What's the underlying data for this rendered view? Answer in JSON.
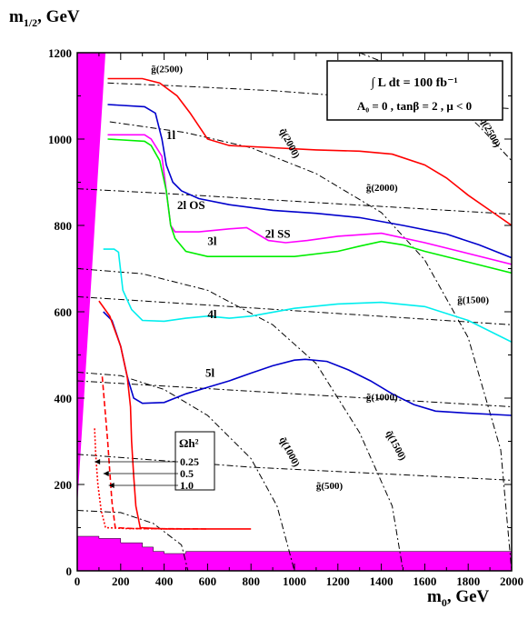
{
  "chart_data": {
    "type": "line",
    "xlabel": {
      "symbol": "m",
      "sub": "0",
      "unit": ", GeV"
    },
    "ylabel": {
      "symbol": "m",
      "sub": "1/2",
      "unit": ", GeV"
    },
    "xlim": [
      0,
      2000
    ],
    "ylim": [
      0,
      1200
    ],
    "xticks": [
      "0",
      "200",
      "400",
      "600",
      "800",
      "1000",
      "1200",
      "1400",
      "1600",
      "1800",
      "2000"
    ],
    "yticks": [
      "0",
      "200",
      "400",
      "600",
      "800",
      "1000",
      "1200"
    ],
    "info_box": {
      "line1": "∫ L dt = 100 fb⁻¹",
      "line2": "A₀ = 0 ,  tanβ = 2 ,  μ < 0"
    },
    "omega_legend": {
      "title": "Ωh²",
      "items": [
        "0.25",
        "0.5",
        "1.0"
      ]
    },
    "series": [
      {
        "name": "1l",
        "color": "#ff0000",
        "label_at": [
          410,
          1000
        ],
        "points": [
          [
            140,
            1140
          ],
          [
            300,
            1140
          ],
          [
            380,
            1130
          ],
          [
            460,
            1100
          ],
          [
            520,
            1060
          ],
          [
            600,
            1000
          ],
          [
            700,
            985
          ],
          [
            900,
            980
          ],
          [
            1100,
            975
          ],
          [
            1300,
            972
          ],
          [
            1450,
            965
          ],
          [
            1600,
            940
          ],
          [
            1700,
            910
          ],
          [
            1800,
            870
          ],
          [
            1900,
            835
          ],
          [
            2000,
            800
          ]
        ]
      },
      {
        "name": "2l OS",
        "color": "#0000cc",
        "label_at": [
          460,
          838
        ],
        "points": [
          [
            140,
            1080
          ],
          [
            310,
            1075
          ],
          [
            360,
            1060
          ],
          [
            390,
            1000
          ],
          [
            410,
            940
          ],
          [
            440,
            900
          ],
          [
            480,
            880
          ],
          [
            560,
            862
          ],
          [
            700,
            848
          ],
          [
            900,
            835
          ],
          [
            1100,
            828
          ],
          [
            1300,
            818
          ],
          [
            1500,
            800
          ],
          [
            1700,
            780
          ],
          [
            1850,
            755
          ],
          [
            2000,
            725
          ]
        ]
      },
      {
        "name": "2l SS",
        "color": "#ff00ff",
        "label_at": [
          865,
          772
        ],
        "points": [
          [
            140,
            1010
          ],
          [
            310,
            1010
          ],
          [
            340,
            1000
          ],
          [
            390,
            960
          ],
          [
            410,
            880
          ],
          [
            430,
            800
          ],
          [
            450,
            785
          ],
          [
            560,
            785
          ],
          [
            700,
            792
          ],
          [
            780,
            795
          ],
          [
            830,
            780
          ],
          [
            880,
            765
          ],
          [
            960,
            760
          ],
          [
            1060,
            765
          ],
          [
            1200,
            775
          ],
          [
            1400,
            782
          ],
          [
            1600,
            760
          ],
          [
            1800,
            735
          ],
          [
            2000,
            710
          ]
        ]
      },
      {
        "name": "3l",
        "color": "#00ee00",
        "label_at": [
          600,
          755
        ],
        "points": [
          [
            140,
            1000
          ],
          [
            310,
            995
          ],
          [
            340,
            985
          ],
          [
            380,
            950
          ],
          [
            410,
            880
          ],
          [
            430,
            800
          ],
          [
            450,
            770
          ],
          [
            500,
            740
          ],
          [
            600,
            728
          ],
          [
            800,
            728
          ],
          [
            1000,
            728
          ],
          [
            1200,
            740
          ],
          [
            1300,
            752
          ],
          [
            1400,
            763
          ],
          [
            1500,
            755
          ],
          [
            1600,
            740
          ],
          [
            1800,
            715
          ],
          [
            2000,
            690
          ]
        ]
      },
      {
        "name": "4l",
        "color": "#00eeee",
        "label_at": [
          600,
          585
        ],
        "points": [
          [
            120,
            745
          ],
          [
            150,
            745
          ],
          [
            170,
            745
          ],
          [
            190,
            738
          ],
          [
            210,
            650
          ],
          [
            250,
            605
          ],
          [
            300,
            580
          ],
          [
            400,
            578
          ],
          [
            500,
            585
          ],
          [
            600,
            590
          ],
          [
            700,
            585
          ],
          [
            800,
            590
          ],
          [
            1000,
            608
          ],
          [
            1200,
            618
          ],
          [
            1400,
            622
          ],
          [
            1600,
            612
          ],
          [
            1800,
            580
          ],
          [
            2000,
            530
          ]
        ]
      },
      {
        "name": "5l",
        "color": "#0000cc",
        "label_at": [
          590,
          450
        ],
        "points": [
          [
            120,
            600
          ],
          [
            160,
            580
          ],
          [
            200,
            520
          ],
          [
            230,
            450
          ],
          [
            260,
            400
          ],
          [
            300,
            388
          ],
          [
            400,
            390
          ],
          [
            500,
            410
          ],
          [
            600,
            425
          ],
          [
            700,
            440
          ],
          [
            800,
            458
          ],
          [
            900,
            475
          ],
          [
            1000,
            488
          ],
          [
            1050,
            490
          ],
          [
            1150,
            485
          ],
          [
            1250,
            465
          ],
          [
            1350,
            440
          ],
          [
            1450,
            410
          ],
          [
            1550,
            385
          ],
          [
            1650,
            370
          ],
          [
            1800,
            365
          ],
          [
            2000,
            360
          ]
        ]
      }
    ],
    "relic_curves": [
      {
        "omega": "0.25",
        "style": "dotted",
        "color": "#ff0000",
        "points": [
          [
            80,
            330
          ],
          [
            85,
            270
          ],
          [
            95,
            200
          ],
          [
            110,
            140
          ],
          [
            130,
            100
          ],
          [
            230,
            98
          ],
          [
            500,
            97
          ]
        ]
      },
      {
        "omega": "0.5",
        "style": "dashed",
        "color": "#ff0000",
        "points": [
          [
            115,
            450
          ],
          [
            125,
            390
          ],
          [
            140,
            300
          ],
          [
            150,
            230
          ],
          [
            160,
            160
          ],
          [
            175,
            100
          ],
          [
            260,
            98
          ],
          [
            600,
            97
          ]
        ]
      },
      {
        "omega": "1.0",
        "style": "solid",
        "color": "#ff0000",
        "points": [
          [
            100,
            625
          ],
          [
            150,
            590
          ],
          [
            200,
            520
          ],
          [
            230,
            450
          ],
          [
            245,
            380
          ],
          [
            250,
            300
          ],
          [
            260,
            220
          ],
          [
            270,
            150
          ],
          [
            290,
            100
          ],
          [
            400,
            97
          ],
          [
            800,
            97
          ]
        ]
      }
    ],
    "gluino_contours": [
      {
        "label": "g̃(500)",
        "label_at": [
          1100,
          190
        ],
        "points": [
          [
            0,
            270
          ],
          [
            400,
            255
          ],
          [
            800,
            240
          ],
          [
            1200,
            230
          ],
          [
            1600,
            220
          ],
          [
            2000,
            210
          ]
        ]
      },
      {
        "label": "g̃(1000)",
        "label_at": [
          1330,
          395
        ],
        "points": [
          [
            0,
            440
          ],
          [
            400,
            428
          ],
          [
            800,
            416
          ],
          [
            1200,
            404
          ],
          [
            1600,
            392
          ],
          [
            2000,
            380
          ]
        ]
      },
      {
        "label": "g̃(1500)",
        "label_at": [
          1750,
          620
        ],
        "points": [
          [
            0,
            635
          ],
          [
            400,
            622
          ],
          [
            800,
            609
          ],
          [
            1200,
            596
          ],
          [
            1600,
            583
          ],
          [
            2000,
            570
          ]
        ]
      },
      {
        "label": "g̃(2000)",
        "label_at": [
          1330,
          880
        ],
        "points": [
          [
            0,
            885
          ],
          [
            400,
            874
          ],
          [
            800,
            862
          ],
          [
            1200,
            850
          ],
          [
            1600,
            838
          ],
          [
            2000,
            826
          ]
        ]
      },
      {
        "label": "g̃(2500)",
        "label_at": [
          340,
          1155
        ],
        "points": [
          [
            140,
            1130
          ],
          [
            500,
            1122
          ],
          [
            900,
            1112
          ],
          [
            1300,
            1097
          ],
          [
            1700,
            1082
          ],
          [
            2000,
            1070
          ]
        ]
      }
    ],
    "squark_contours": [
      {
        "label": "q̃(1000)",
        "label_at": [
          930,
          305
        ],
        "points": [
          [
            0,
            460
          ],
          [
            200,
            452
          ],
          [
            400,
            420
          ],
          [
            600,
            360
          ],
          [
            800,
            260
          ],
          [
            920,
            150
          ],
          [
            1000,
            0
          ]
        ]
      },
      {
        "label": "q̃(1500)",
        "label_at": [
          1420,
          320
        ],
        "points": [
          [
            0,
            700
          ],
          [
            300,
            688
          ],
          [
            600,
            650
          ],
          [
            900,
            570
          ],
          [
            1100,
            480
          ],
          [
            1300,
            320
          ],
          [
            1450,
            150
          ],
          [
            1500,
            0
          ]
        ]
      },
      {
        "label": "q̃(2000)",
        "label_at": [
          930,
          1020
        ],
        "points": [
          [
            150,
            1040
          ],
          [
            500,
            1015
          ],
          [
            800,
            980
          ],
          [
            1100,
            920
          ],
          [
            1400,
            830
          ],
          [
            1600,
            720
          ],
          [
            1800,
            540
          ],
          [
            1950,
            280
          ],
          [
            2000,
            0
          ]
        ]
      },
      {
        "label": "q̃(2500)",
        "label_at": [
          1855,
          1045
        ],
        "points": [
          [
            1300,
            1200
          ],
          [
            1500,
            1160
          ],
          [
            1700,
            1100
          ],
          [
            1850,
            1030
          ],
          [
            2000,
            950
          ]
        ]
      }
    ],
    "small_contour": {
      "points": [
        [
          0,
          140
        ],
        [
          200,
          135
        ],
        [
          350,
          110
        ],
        [
          480,
          60
        ],
        [
          510,
          0
        ]
      ]
    },
    "excluded_colour": "#ff00ff"
  }
}
